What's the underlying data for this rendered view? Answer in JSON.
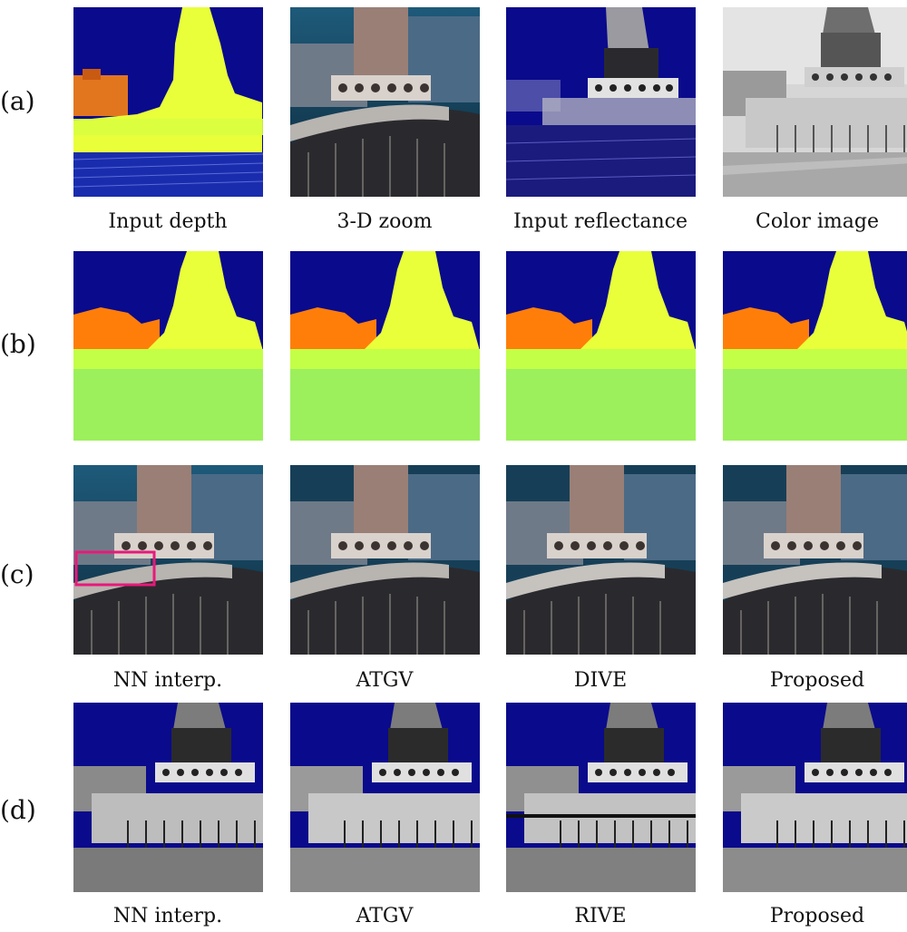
{
  "rows": [
    {
      "label": "(a)",
      "captions": [
        "Input depth",
        "3-D zoom",
        "Input reflectance",
        "Color image"
      ]
    },
    {
      "label": "(b)",
      "captions": [
        "",
        "",
        "",
        ""
      ]
    },
    {
      "label": "(c)",
      "captions": [
        "NN interp.",
        "ATGV",
        "DIVE",
        "Proposed"
      ]
    },
    {
      "label": "(d)",
      "captions": [
        "NN interp.",
        "ATGV",
        "RIVE",
        "Proposed"
      ]
    }
  ],
  "colors": {
    "background_blue": "#0a0a8c",
    "depth_near": "#f3ff2e",
    "depth_far": "#ff7a00",
    "depth_ground": "#9cff4f",
    "highlight_box": "#e8197a"
  }
}
